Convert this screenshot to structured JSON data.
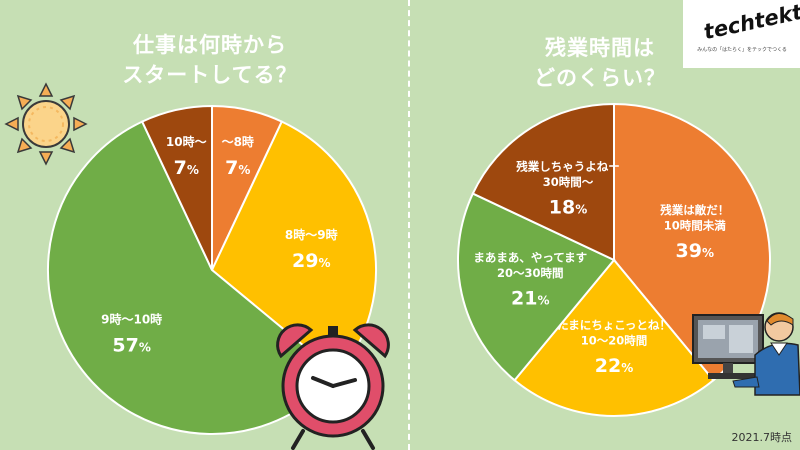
{
  "logo": {
    "name": "techtekt",
    "tagline": "みんなの「はたらく」をテックでつくる"
  },
  "footnote": "2021.7時点",
  "chart_data": [
    {
      "type": "pie",
      "title_lines": [
        "仕事は何時から",
        "スタートしてる？"
      ],
      "slices": [
        {
          "label_lines": [
            "〜8時"
          ],
          "value": 7,
          "value_text": "7",
          "color": "#ed7d31"
        },
        {
          "label_lines": [
            "8時〜9時"
          ],
          "value": 29,
          "value_text": "29",
          "color": "#ffc000"
        },
        {
          "label_lines": [
            "9時〜10時"
          ],
          "value": 57,
          "value_text": "57",
          "color": "#70ad47"
        },
        {
          "label_lines": [
            "10時〜"
          ],
          "value": 7,
          "value_text": "7",
          "color": "#9e480e"
        }
      ],
      "unit": "%"
    },
    {
      "type": "pie",
      "title_lines": [
        "残業時間は",
        "どのくらい？"
      ],
      "slices": [
        {
          "label_lines": [
            "残業は敵だ！",
            "10時間未満"
          ],
          "value": 39,
          "value_text": "39",
          "color": "#ed7d31"
        },
        {
          "label_lines": [
            "たまにちょこっとね！",
            "10〜20時間"
          ],
          "value": 22,
          "value_text": "22",
          "color": "#ffc000"
        },
        {
          "label_lines": [
            "まあまあ、やってます",
            "20〜30時間"
          ],
          "value": 21,
          "value_text": "21",
          "color": "#70ad47"
        },
        {
          "label_lines": [
            "残業しちゃうよねー",
            "30時間〜"
          ],
          "value": 18,
          "value_text": "18",
          "color": "#9e480e"
        }
      ],
      "unit": "%"
    }
  ],
  "illustrations": {
    "sun": "sun-icon",
    "clock": "alarm-clock-icon",
    "worker": "person-at-computer-icon"
  }
}
